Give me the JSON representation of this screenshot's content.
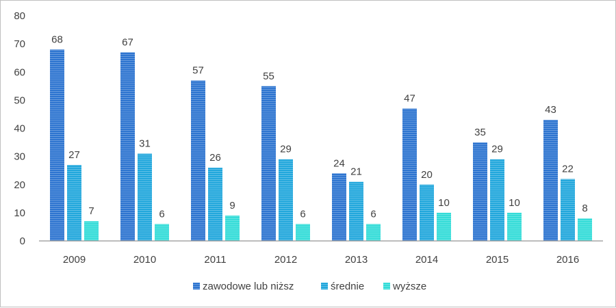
{
  "chart_data": {
    "type": "bar",
    "categories": [
      "2009",
      "2010",
      "2011",
      "2012",
      "2013",
      "2014",
      "2015",
      "2016"
    ],
    "series": [
      {
        "name": "zawodowe lub niższ",
        "color": "#2e75d0",
        "values": [
          68,
          67,
          57,
          55,
          24,
          47,
          35,
          43
        ]
      },
      {
        "name": "średnie",
        "color": "#22a7dc",
        "values": [
          27,
          31,
          26,
          29,
          21,
          20,
          29,
          22
        ]
      },
      {
        "name": "wyższe",
        "color": "#33dcd8",
        "values": [
          7,
          6,
          9,
          6,
          6,
          10,
          10,
          8
        ]
      }
    ],
    "ylim": [
      0,
      80
    ],
    "yticks": [
      0,
      10,
      20,
      30,
      40,
      50,
      60,
      70,
      80
    ],
    "grid": false,
    "legend_position": "bottom",
    "data_labels": true
  }
}
